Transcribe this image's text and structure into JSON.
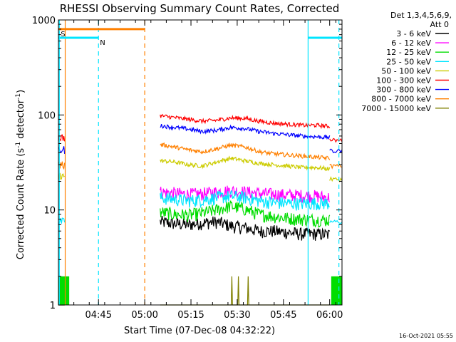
{
  "chart_data": {
    "type": "line",
    "title": "RHESSI Observing Summary Count Rates, Corrected",
    "xlabel": "Start Time (07-Dec-08 04:32:22)",
    "ylabel_main": "Corrected Count Rate (s",
    "ylabel_sup1": "-1",
    "ylabel_mid": " detector",
    "ylabel_sup2": "-1",
    "ylabel_end": ")",
    "scale_y": "log",
    "ylim": [
      1,
      1000
    ],
    "xlim_minutes_after_0432": [
      0,
      92
    ],
    "x_ticks": [
      {
        "label": "04:45",
        "minute": 13
      },
      {
        "label": "05:00",
        "minute": 28
      },
      {
        "label": "05:15",
        "minute": 43
      },
      {
        "label": "05:30",
        "minute": 58
      },
      {
        "label": "05:45",
        "minute": 73
      },
      {
        "label": "06:00",
        "minute": 88
      }
    ],
    "y_ticks": [
      {
        "label": "1",
        "value": 1
      },
      {
        "label": "10",
        "value": 10
      },
      {
        "label": "100",
        "value": 100
      },
      {
        "label": "1000",
        "value": 1000
      }
    ],
    "legend": {
      "placement": "right",
      "header1": "Det 1,3,4,5,6,9,",
      "header2": "Att 0",
      "entries": [
        {
          "name": "3 - 6 keV",
          "color": "#000000"
        },
        {
          "name": "6 - 12 keV",
          "color": "#ff00ff"
        },
        {
          "name": "12 - 25 keV",
          "color": "#00dd00"
        },
        {
          "name": "25 - 50 keV",
          "color": "#00e5ff"
        },
        {
          "name": "50 - 100 keV",
          "color": "#cccc00"
        },
        {
          "name": "100 - 300 keV",
          "color": "#ff0000"
        },
        {
          "name": "300 - 800 keV",
          "color": "#0000ff"
        },
        {
          "name": "800 - 7000 keV",
          "color": "#ff8000"
        },
        {
          "name": "7000 - 15000 keV",
          "color": "#808000"
        }
      ]
    },
    "segments": [
      {
        "x_start": 0,
        "x_end": 2
      },
      {
        "x_start": 33,
        "x_end": 88
      }
    ],
    "series": [
      {
        "band": "3 - 6 keV",
        "color": "#000000",
        "pre": 1.0,
        "values": [
          7.5,
          7.2,
          7.0,
          7.3,
          7.5,
          6.8,
          6.5,
          6.0,
          6.0,
          5.8,
          5.6,
          5.6,
          5.5
        ]
      },
      {
        "band": "6 - 12 keV",
        "color": "#ff00ff",
        "pre": 1.0,
        "values": [
          15.5,
          15.0,
          14.6,
          14.8,
          15.5,
          16.0,
          15.5,
          15.0,
          14.6,
          14.4,
          14.2,
          14.0,
          13.5
        ]
      },
      {
        "band": "12 - 25 keV",
        "color": "#00dd00",
        "pre": 1.0,
        "values": [
          9.5,
          9.0,
          8.8,
          9.3,
          10.0,
          11.0,
          10.2,
          9.0,
          8.6,
          8.2,
          8.0,
          7.9,
          7.8
        ]
      },
      {
        "band": "25 - 50 keV",
        "color": "#00e5ff",
        "pre": 7.5,
        "post": 7.5,
        "values": [
          13.5,
          13.0,
          12.5,
          12.8,
          13.5,
          14.0,
          13.5,
          12.5,
          12.0,
          11.8,
          11.7,
          11.8,
          11.8
        ]
      },
      {
        "band": "50 - 100 keV",
        "color": "#cccc00",
        "pre": 23,
        "post": 21,
        "values": [
          33,
          32,
          30,
          29,
          32,
          35,
          33,
          31,
          30,
          29,
          28,
          28,
          27
        ]
      },
      {
        "band": "100 - 300 keV",
        "color": "#ff0000",
        "pre": 58,
        "post": 54,
        "values": [
          98,
          94,
          90,
          86,
          88,
          93,
          92,
          86,
          82,
          80,
          78,
          78,
          76
        ]
      },
      {
        "band": "300 - 800 keV",
        "color": "#0000ff",
        "pre": 43,
        "post": 42,
        "values": [
          77,
          74,
          71,
          67,
          69,
          74,
          72,
          67,
          64,
          62,
          60,
          59,
          58
        ]
      },
      {
        "band": "800 - 7000 keV",
        "color": "#ff8000",
        "pre": 30,
        "post": 29,
        "values": [
          49,
          46,
          43,
          41,
          44,
          48,
          46,
          41,
          39,
          38,
          37,
          36,
          35
        ]
      },
      {
        "band": "7000 - 15000 keV",
        "color": "#808000",
        "pre": 1.0,
        "values": [
          1.0,
          1.0,
          1.0,
          1.0,
          1.0,
          1.0,
          1.0,
          1.0,
          1.0,
          1.0,
          1.0,
          1.0,
          1.0
        ]
      }
    ],
    "flags": [
      {
        "label": "S",
        "color": "#ff8000",
        "value": 800,
        "x_start": 0,
        "x_end": 28
      },
      {
        "label": "N",
        "color": "#00e5ff",
        "value": 650,
        "x_start": 0,
        "x_end": 13
      },
      {
        "label": "",
        "color": "#00e5ff",
        "value": 650,
        "x_end": 92,
        "x_start": 81
      }
    ],
    "markers": [
      {
        "color": "#00e5ff",
        "style": "solid",
        "minute": 0.3
      },
      {
        "color": "#ff8000",
        "style": "solid",
        "minute": 2.2
      },
      {
        "color": "#00e5ff",
        "style": "dashed",
        "minute": 13
      },
      {
        "color": "#ff8000",
        "style": "dashed",
        "minute": 28
      },
      {
        "color": "#00e5ff",
        "style": "solid",
        "minute": 81
      },
      {
        "color": "#00e5ff",
        "style": "dashed",
        "minute": 91
      }
    ],
    "grid": false
  },
  "footer_timestamp": "16-Oct-2021 05:55"
}
